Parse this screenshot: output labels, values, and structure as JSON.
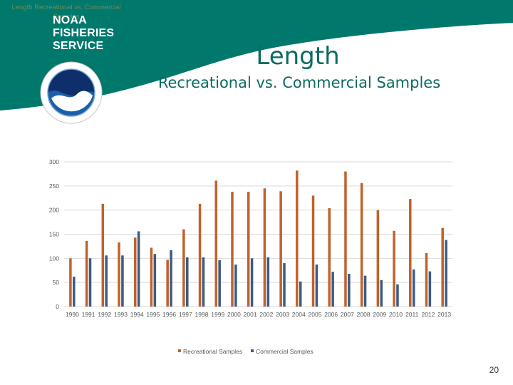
{
  "slide": {
    "faint_title": "Length Recreational vs. Commercial Samples",
    "agency_lines": [
      "NOAA",
      "FISHERIES",
      "SERVICE"
    ],
    "title": "Length",
    "subtitle": "Recreational vs. Commercial Samples",
    "page_number": "20"
  },
  "colors": {
    "header": "#00786c",
    "title": "#0b6b62",
    "recreational": "#c0622a",
    "commercial": "#3c5a86",
    "grid": "#d9d9d9"
  },
  "chart_data": {
    "type": "bar",
    "title": "",
    "xlabel": "",
    "ylabel": "",
    "ylim": [
      0,
      300
    ],
    "yticks": [
      "0",
      "50",
      "100",
      "150",
      "200",
      "250",
      "300"
    ],
    "grid": true,
    "legend_position": "bottom",
    "categories": [
      "1990",
      "1991",
      "1992",
      "1993",
      "1994",
      "1995",
      "1996",
      "1997",
      "1998",
      "1999",
      "2000",
      "2001",
      "2002",
      "2003",
      "2004",
      "2005",
      "2006",
      "2007",
      "2008",
      "2009",
      "2010",
      "2011",
      "2012",
      "2013"
    ],
    "series": [
      {
        "name": "Recreational Samples",
        "values": [
          100,
          136,
          213,
          133,
          143,
          122,
          97,
          160,
          213,
          261,
          238,
          238,
          245,
          239,
          282,
          230,
          204,
          280,
          256,
          200,
          157,
          223,
          111,
          163
        ]
      },
      {
        "name": "Commercial Samples",
        "values": [
          62,
          100,
          106,
          106,
          156,
          109,
          117,
          102,
          102,
          96,
          87,
          100,
          102,
          90,
          52,
          87,
          72,
          68,
          64,
          55,
          46,
          77,
          73,
          138
        ]
      }
    ]
  }
}
